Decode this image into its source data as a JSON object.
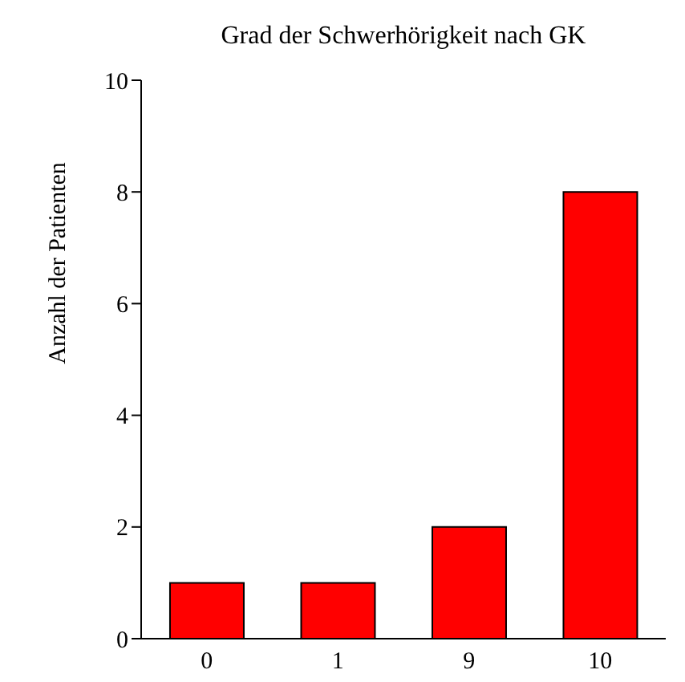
{
  "chart_data": {
    "type": "bar",
    "title": "Grad der Schwerhörigkeit nach GK",
    "ylabel": "Anzahl der Patienten",
    "categories": [
      "0",
      "1",
      "9",
      "10"
    ],
    "values": [
      1,
      1,
      2,
      8
    ],
    "color": "#ff0000",
    "ylim": [
      0,
      10
    ],
    "yticks": [
      0,
      2,
      4,
      6,
      8,
      10
    ],
    "grid": false,
    "legend": false
  }
}
